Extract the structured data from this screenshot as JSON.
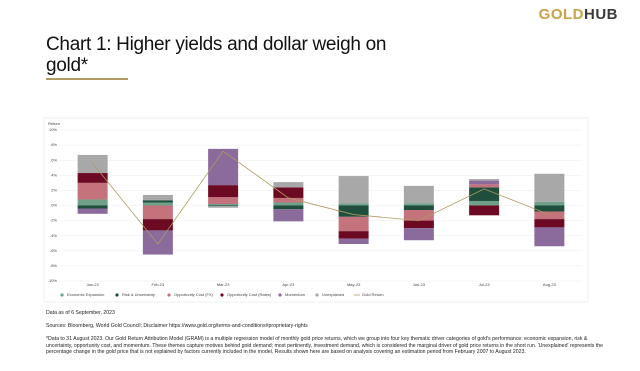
{
  "header": {
    "logo_gold": "GOLD",
    "logo_hub": "HUB"
  },
  "chart_data": {
    "type": "bar",
    "stacked": true,
    "title": "Chart 1: Higher yields and dollar weigh on gold*",
    "y_label": "Return",
    "categories": [
      "Jan-23",
      "Feb-23",
      "Mar-23",
      "Apr-23",
      "May-23",
      "Jun-23",
      "Jul-23",
      "Aug-23"
    ],
    "ylim": [
      -10,
      10
    ],
    "yticks": [
      {
        "value": -10,
        "label": "-10%"
      },
      {
        "value": -8,
        "label": "-8%"
      },
      {
        "value": -6,
        "label": "-6%"
      },
      {
        "value": -4,
        "label": "-4%"
      },
      {
        "value": -2,
        "label": "-2%"
      },
      {
        "value": 0,
        "label": "0%"
      },
      {
        "value": 2,
        "label": "2%"
      },
      {
        "value": 4,
        "label": "4%"
      },
      {
        "value": 6,
        "label": "6%"
      },
      {
        "value": 8,
        "label": "8%"
      },
      {
        "value": 10,
        "label": "10%"
      }
    ],
    "series": [
      {
        "name": "Economic Expansion",
        "color": "#6fa08a",
        "values": [
          0.8,
          0.4,
          0.2,
          0.4,
          0.3,
          0.3,
          0.6,
          0.5
        ]
      },
      {
        "name": "Risk & Uncertainty",
        "color": "#1f4e3d",
        "values": [
          -0.4,
          0.3,
          -0.1,
          -0.5,
          -1.5,
          -0.6,
          1.8,
          -0.8
        ]
      },
      {
        "name": "Opportunity Cost (FX)",
        "color": "#c4727c",
        "values": [
          2.2,
          -1.8,
          0.9,
          0.6,
          -1.9,
          -1.4,
          0.4,
          -1.0
        ]
      },
      {
        "name": "Opportunity Cost (Rates)",
        "color": "#6b0a22",
        "values": [
          1.3,
          -1.5,
          1.6,
          1.4,
          -1.0,
          -1.0,
          -1.3,
          -1.1
        ]
      },
      {
        "name": "Momentum",
        "color": "#8b6a9c",
        "values": [
          -0.7,
          -3.2,
          4.8,
          -1.6,
          -0.7,
          -1.6,
          0.5,
          -2.5
        ]
      },
      {
        "name": "Unexplained",
        "color": "#a8a8a8",
        "values": [
          2.4,
          0.7,
          -0.2,
          0.7,
          3.6,
          2.3,
          0.2,
          3.7
        ]
      },
      {
        "name": "Gold Return",
        "color": "#b09a63",
        "type": "line",
        "values": [
          5.6,
          -5.1,
          7.2,
          1.0,
          -1.2,
          -2.0,
          2.2,
          -1.2
        ]
      }
    ]
  },
  "notes": {
    "data_date": "Data as of 6 September, 2023",
    "sources": "Sources: Bloomberg, World Gold Council; Disclaimer https://www.gold.org/terms-and-conditions#proprietary-rights",
    "footnote": "*Data to 31 August 2023. Our Gold Return Attribution Model (GRAM) is a multiple regression model of monthly gold price returns, which we group into four key thematic driver categories of gold's performance: economic expansion, risk & uncertainty, opportunity cost, and momentum. These themes capture motives behind gold demand; most pertinently, investment demand, which is considered the marginal driver of gold price returns in the short run. 'Unexplained' represents the percentage change in the gold price that is not explained by factors currently included in the model. Results shown here are based on analysis covering an estimation period from February 2007 to August 2023."
  }
}
